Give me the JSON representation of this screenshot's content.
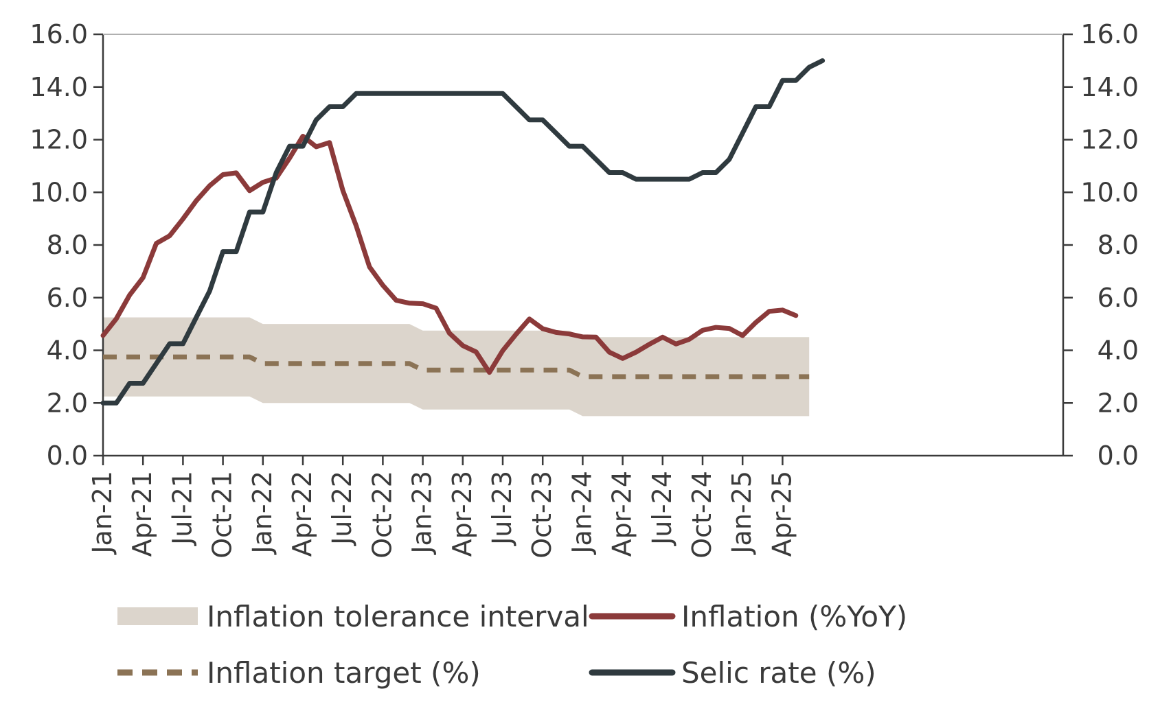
{
  "chart_data": {
    "type": "line",
    "title": "",
    "xlabel": "",
    "ylabel": "",
    "ylim": [
      0,
      16
    ],
    "y_ticks": [
      "0.0",
      "2.0",
      "4.0",
      "6.0",
      "8.0",
      "10.0",
      "12.0",
      "14.0",
      "16.0"
    ],
    "y2_ticks": [
      "0.0",
      "2.0",
      "4.0",
      "6.0",
      "8.0",
      "10.0",
      "12.0",
      "14.0",
      "16.0"
    ],
    "x_tick_labels": [
      "Jan-21",
      "Apr-21",
      "Jul-21",
      "Oct-21",
      "Jan-22",
      "Apr-22",
      "Jul-22",
      "Oct-22",
      "Jan-23",
      "Apr-23",
      "Jul-23",
      "Oct-23",
      "Jan-24",
      "Apr-24",
      "Jul-24",
      "Oct-24",
      "Jan-25",
      "Apr-25"
    ],
    "x_start_month": "Jan-21",
    "grid": false,
    "legend_position": "bottom",
    "colors": {
      "band": "#dcd5cc",
      "inflation": "#8b3a3a",
      "target": "#8b7355",
      "selic": "#2f3a3f",
      "axis": "#3a3a3a"
    },
    "band": {
      "name": "Inflation tolerance interval",
      "segments": [
        {
          "from": "Jan-21",
          "to": "Dec-21",
          "lower": 2.25,
          "upper": 5.25
        },
        {
          "from": "Jan-22",
          "to": "Dec-22",
          "lower": 2.0,
          "upper": 5.0
        },
        {
          "from": "Jan-23",
          "to": "Dec-23",
          "lower": 1.75,
          "upper": 4.75
        },
        {
          "from": "Jan-24",
          "to": "Jun-25",
          "lower": 1.5,
          "upper": 4.5
        }
      ]
    },
    "series": [
      {
        "name": "Inflation (%YoY)",
        "style": "solid",
        "values": [
          4.56,
          5.2,
          6.1,
          6.76,
          8.06,
          8.35,
          8.99,
          9.68,
          10.25,
          10.67,
          10.74,
          10.06,
          10.38,
          10.54,
          11.3,
          12.13,
          11.73,
          11.89,
          10.07,
          8.73,
          7.17,
          6.47,
          5.9,
          5.79,
          5.77,
          5.6,
          4.65,
          4.18,
          3.94,
          3.16,
          3.99,
          4.61,
          5.19,
          4.82,
          4.68,
          4.62,
          4.51,
          4.5,
          3.93,
          3.69,
          3.93,
          4.23,
          4.5,
          4.24,
          4.42,
          4.76,
          4.87,
          4.83,
          4.56,
          5.06,
          5.48,
          5.53,
          5.32
        ]
      },
      {
        "name": "Inflation target (%)",
        "style": "dashed",
        "values": [
          3.75,
          3.75,
          3.75,
          3.75,
          3.75,
          3.75,
          3.75,
          3.75,
          3.75,
          3.75,
          3.75,
          3.75,
          3.5,
          3.5,
          3.5,
          3.5,
          3.5,
          3.5,
          3.5,
          3.5,
          3.5,
          3.5,
          3.5,
          3.5,
          3.25,
          3.25,
          3.25,
          3.25,
          3.25,
          3.25,
          3.25,
          3.25,
          3.25,
          3.25,
          3.25,
          3.25,
          3.0,
          3.0,
          3.0,
          3.0,
          3.0,
          3.0,
          3.0,
          3.0,
          3.0,
          3.0,
          3.0,
          3.0,
          3.0,
          3.0,
          3.0,
          3.0,
          3.0,
          3.0
        ]
      },
      {
        "name": "Selic rate (%)",
        "style": "solid",
        "values": [
          2.0,
          2.0,
          2.75,
          2.75,
          3.5,
          4.25,
          4.25,
          5.25,
          6.25,
          7.75,
          7.75,
          9.25,
          9.25,
          10.75,
          11.75,
          11.75,
          12.75,
          13.25,
          13.25,
          13.75,
          13.75,
          13.75,
          13.75,
          13.75,
          13.75,
          13.75,
          13.75,
          13.75,
          13.75,
          13.75,
          13.75,
          13.25,
          12.75,
          12.75,
          12.25,
          11.75,
          11.75,
          11.25,
          10.75,
          10.75,
          10.5,
          10.5,
          10.5,
          10.5,
          10.5,
          10.75,
          10.75,
          11.25,
          12.25,
          13.25,
          13.25,
          14.25,
          14.25,
          14.75,
          15.0
        ]
      }
    ],
    "legend": [
      {
        "label": "Inflation tolerance interval",
        "kind": "band"
      },
      {
        "label": "Inflation (%YoY)",
        "kind": "inflation"
      },
      {
        "label": "Inflation target (%)",
        "kind": "target"
      },
      {
        "label": "Selic rate (%)",
        "kind": "selic"
      }
    ]
  }
}
